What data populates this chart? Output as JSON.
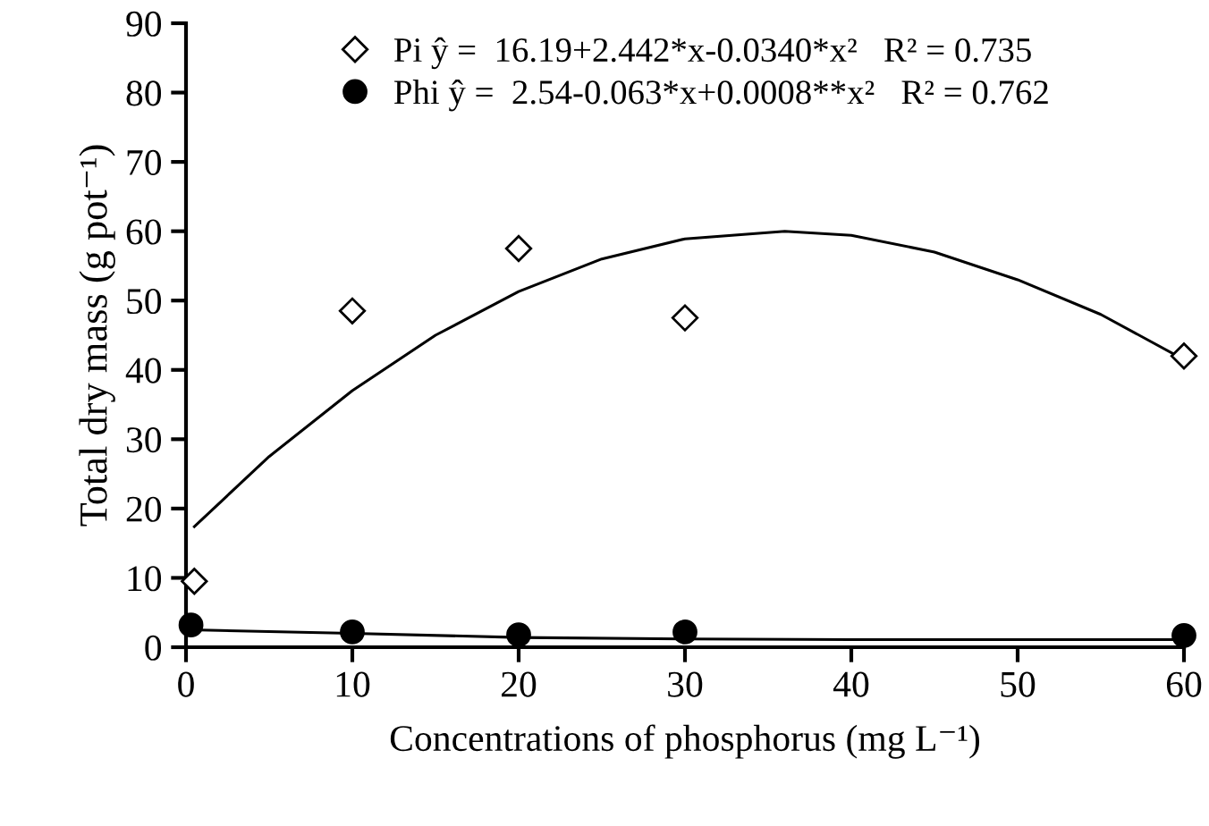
{
  "chart_data": {
    "type": "scatter",
    "xlabel": "Concentrations of phosphorus (mg L⁻¹)",
    "ylabel": "Total dry mass (g pot⁻¹)",
    "xlim": [
      0,
      60
    ],
    "ylim": [
      0,
      90
    ],
    "xticks": [
      0,
      10,
      20,
      30,
      40,
      50,
      60
    ],
    "yticks": [
      0,
      10,
      20,
      30,
      40,
      50,
      60,
      70,
      80,
      90
    ],
    "grid": false,
    "legend": "top",
    "series": [
      {
        "name": "Pi ŷ =  16.19+2.442*x-0.0340*x²   R² = 0.735",
        "color": "#000000",
        "marker": "diamond",
        "x": [
          0.5,
          10,
          20,
          30,
          60
        ],
        "values": [
          9.5,
          48.5,
          57.5,
          47.5,
          42
        ]
      },
      {
        "name": "Phi ŷ =  2.54-0.063*x+0.0008**x²   R² = 0.762",
        "color": "#000000",
        "marker": "circle",
        "x": [
          0.3,
          10,
          20,
          30,
          60
        ],
        "values": [
          3.2,
          2.2,
          1.8,
          2.2,
          1.7
        ]
      },
      {
        "type": "line",
        "color": "#000000",
        "marker": "none",
        "x": [
          0.5,
          5,
          10,
          15,
          20,
          25,
          30,
          36,
          40,
          45,
          50,
          55,
          60
        ],
        "values": [
          17.4,
          27.5,
          37,
          45,
          51.3,
          56,
          58.9,
          60,
          59.4,
          57,
          53,
          48,
          41.5
        ]
      },
      {
        "type": "line",
        "color": "#000000",
        "marker": "none",
        "x": [
          0.3,
          10,
          20,
          30,
          40,
          50,
          60
        ],
        "values": [
          2.5,
          2.0,
          1.4,
          1.2,
          1.1,
          1.1,
          1.1
        ]
      }
    ]
  }
}
